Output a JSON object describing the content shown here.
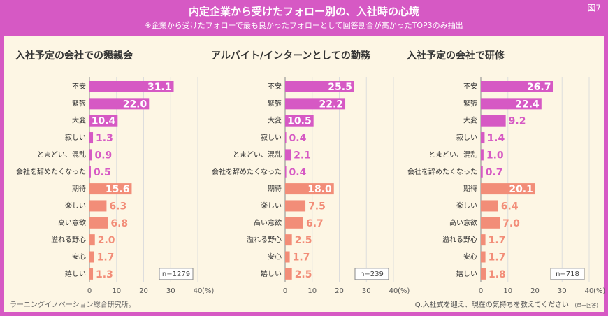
{
  "header": {
    "title": "内定企業から受けたフォロー別の、入社時の心境",
    "subtitle": "※企業から受けたフォローで最も良かったフォローとして回答割合が高かったTOP3のみ抽出",
    "figure_label": "図7"
  },
  "chart_data": [
    {
      "type": "hbar",
      "title": "入社予定の会社での懇親会",
      "categories": [
        "不安",
        "緊張",
        "大変",
        "寂しい",
        "とまどい、混乱",
        "会社を辞めたくなった",
        "期待",
        "楽しい",
        "高い意欲",
        "溢れる野心",
        "安心",
        "嬉しい"
      ],
      "values": [
        31.1,
        22.0,
        10.4,
        1.3,
        0.9,
        0.5,
        15.6,
        6.3,
        6.8,
        2.0,
        1.7,
        1.3
      ],
      "value_labels": [
        "31.1",
        "22.0",
        "10.4",
        "1.3",
        "0.9",
        "0.5",
        "15.6",
        "6.3",
        "6.8",
        "2.0",
        "1.7",
        "1.3"
      ],
      "colors": [
        "#d659c4",
        "#d659c4",
        "#d659c4",
        "#d659c4",
        "#d659c4",
        "#d659c4",
        "#f28d78",
        "#f28d78",
        "#f28d78",
        "#f28d78",
        "#f28d78",
        "#f28d78"
      ],
      "xlim": [
        0,
        40
      ],
      "xticks": [
        0,
        10,
        20,
        30,
        40
      ],
      "x_unit": "(%)",
      "note": "n=1279",
      "grid": true
    },
    {
      "type": "hbar",
      "title": "アルバイト/インターンとしての勤務",
      "categories": [
        "不安",
        "緊張",
        "大変",
        "寂しい",
        "とまどい、混乱",
        "会社を辞めたくなった",
        "期待",
        "楽しい",
        "高い意欲",
        "溢れる野心",
        "安心",
        "嬉しい"
      ],
      "values": [
        25.5,
        22.2,
        10.5,
        0.4,
        2.1,
        0.4,
        18.0,
        7.5,
        6.7,
        2.5,
        1.7,
        2.5
      ],
      "value_labels": [
        "25.5",
        "22.2",
        "10.5",
        "0.4",
        "2.1",
        "0.4",
        "18.0",
        "7.5",
        "6.7",
        "2.5",
        "1.7",
        "2.5"
      ],
      "colors": [
        "#d659c4",
        "#d659c4",
        "#d659c4",
        "#d659c4",
        "#d659c4",
        "#d659c4",
        "#f28d78",
        "#f28d78",
        "#f28d78",
        "#f28d78",
        "#f28d78",
        "#f28d78"
      ],
      "xlim": [
        0,
        40
      ],
      "xticks": [
        0,
        10,
        20,
        30,
        40
      ],
      "x_unit": "(%)",
      "note": "n=239",
      "grid": true
    },
    {
      "type": "hbar",
      "title": "入社予定の会社で研修",
      "categories": [
        "不安",
        "緊張",
        "大変",
        "寂しい",
        "とまどい、混乱",
        "会社を辞めたくなった",
        "期待",
        "楽しい",
        "高い意欲",
        "溢れる野心",
        "安心",
        "嬉しい"
      ],
      "values": [
        26.7,
        22.4,
        9.2,
        1.4,
        1.0,
        0.7,
        20.1,
        6.4,
        7.0,
        1.7,
        1.7,
        1.8
      ],
      "value_labels": [
        "26.7",
        "22.4",
        "9.2",
        "1.4",
        "1.0",
        "0.7",
        "20.1",
        "6.4",
        "7.0",
        "1.7",
        "1.7",
        "1.8"
      ],
      "colors": [
        "#d659c4",
        "#d659c4",
        "#d659c4",
        "#d659c4",
        "#d659c4",
        "#d659c4",
        "#f28d78",
        "#f28d78",
        "#f28d78",
        "#f28d78",
        "#f28d78",
        "#f28d78"
      ],
      "xlim": [
        0,
        40
      ],
      "xticks": [
        0,
        10,
        20,
        30,
        40
      ],
      "x_unit": "(%)",
      "note": "n=718",
      "grid": true
    }
  ],
  "footer": {
    "source": "ラーニングイノベーション総合研究所。",
    "question": "Q.入社式を迎え、現在の気持ちを教えてください",
    "question_note": "(単一回答)"
  }
}
